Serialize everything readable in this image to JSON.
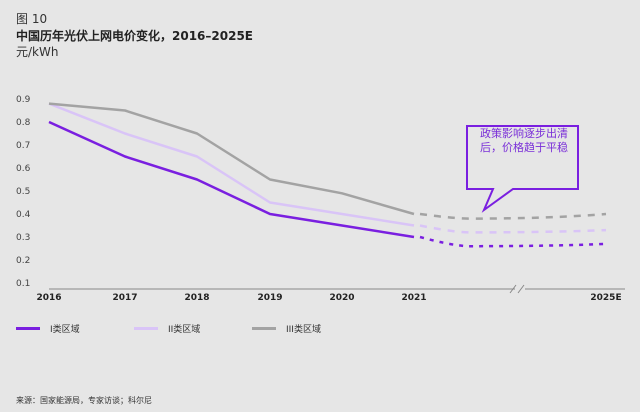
{
  "figure_label": "图 10",
  "chart_data": {
    "type": "line",
    "title": "中国历年光伏上网电价变化，2016–2025E",
    "ylabel": "元/kWh",
    "xlabel": "",
    "ylim": [
      0.1,
      0.9
    ],
    "yticks": [
      "0.9",
      "0.8",
      "0.7",
      "0.6",
      "0.5",
      "0.4",
      "0.3",
      "0.2",
      "0.1"
    ],
    "categories": [
      "2016",
      "2017",
      "2018",
      "2019",
      "2020",
      "2021"
    ],
    "projection_label": "2025E",
    "axis_break": true,
    "grid": false,
    "legend_placement": "bottom",
    "series": [
      {
        "name": "I类区域",
        "color": "#7a1fe0",
        "values": [
          0.8,
          0.65,
          0.55,
          0.4,
          0.35,
          0.3
        ],
        "projected": [
          0.26,
          0.27
        ]
      },
      {
        "name": "II类区域",
        "color": "#d9c4f7",
        "values": [
          0.88,
          0.75,
          0.65,
          0.45,
          0.4,
          0.35
        ],
        "projected": [
          0.32,
          0.33
        ]
      },
      {
        "name": "III类区域",
        "color": "#a3a3a3",
        "values": [
          0.88,
          0.85,
          0.75,
          0.55,
          0.49,
          0.4
        ],
        "projected": [
          0.38,
          0.4
        ]
      }
    ],
    "annotation": "政策影响逐步出清后，价格趋于平稳"
  },
  "source": "来源：国家能源局，专家访谈；科尔尼"
}
